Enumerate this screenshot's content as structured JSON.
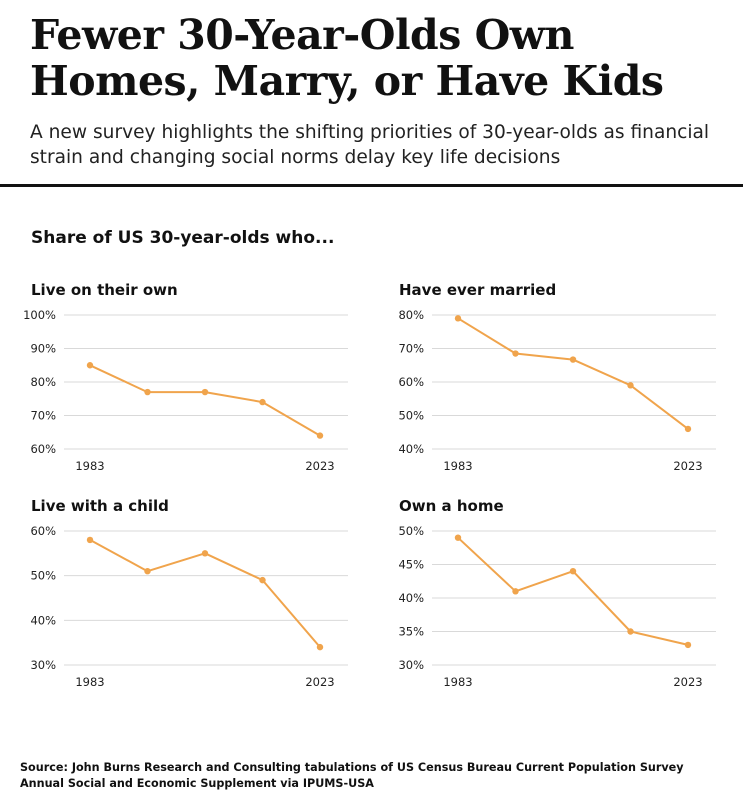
{
  "title": "Fewer 30-Year-Olds Own Homes, Marry, or Have Kids",
  "subtitle": "A new survey highlights the shifting priorities of 30-year-olds as financial strain and changing social norms delay key life decisions",
  "section_label": "Share of US 30-year-olds who...",
  "source": "Source: John Burns Research and Consulting tabulations of US Census Bureau Current Population Survey Annual Social and Economic Supplement via IPUMS-USA",
  "colors": {
    "line": "#F0A44C",
    "grid": "#D9D9D9"
  },
  "chart_data": [
    {
      "type": "line",
      "title": "Live on their own",
      "x": [
        1983,
        1993,
        2003,
        2013,
        2023
      ],
      "x_tick_labels": [
        "1983",
        "2023"
      ],
      "values": [
        85,
        77,
        77,
        74,
        64
      ],
      "ylim": [
        60,
        100
      ],
      "y_ticks": [
        60,
        70,
        80,
        90,
        100
      ],
      "y_tick_labels": [
        "60%",
        "70%",
        "80%",
        "90%",
        "100%"
      ],
      "grid": true
    },
    {
      "type": "line",
      "title": "Have ever married",
      "x": [
        1983,
        1993,
        2003,
        2013,
        2023
      ],
      "x_tick_labels": [
        "1983",
        "2023"
      ],
      "values": [
        79,
        68.5,
        66.7,
        59,
        46
      ],
      "ylim": [
        40,
        80
      ],
      "y_ticks": [
        40,
        50,
        60,
        70,
        80
      ],
      "y_tick_labels": [
        "40%",
        "50%",
        "60%",
        "70%",
        "80%"
      ],
      "grid": true
    },
    {
      "type": "line",
      "title": "Live with a child",
      "x": [
        1983,
        1993,
        2003,
        2013,
        2023
      ],
      "x_tick_labels": [
        "1983",
        "2023"
      ],
      "values": [
        58,
        51,
        55,
        49,
        34
      ],
      "ylim": [
        30,
        60
      ],
      "y_ticks": [
        30,
        40,
        50,
        60
      ],
      "y_tick_labels": [
        "30%",
        "40%",
        "50%",
        "60%"
      ],
      "grid": true
    },
    {
      "type": "line",
      "title": "Own a home",
      "x": [
        1983,
        1993,
        2003,
        2013,
        2023
      ],
      "x_tick_labels": [
        "1983",
        "2023"
      ],
      "values": [
        49,
        41,
        44,
        35,
        33
      ],
      "ylim": [
        30,
        50
      ],
      "y_ticks": [
        30,
        35,
        40,
        45,
        50
      ],
      "y_tick_labels": [
        "30%",
        "35%",
        "40%",
        "45%",
        "50%"
      ],
      "grid": true
    }
  ]
}
